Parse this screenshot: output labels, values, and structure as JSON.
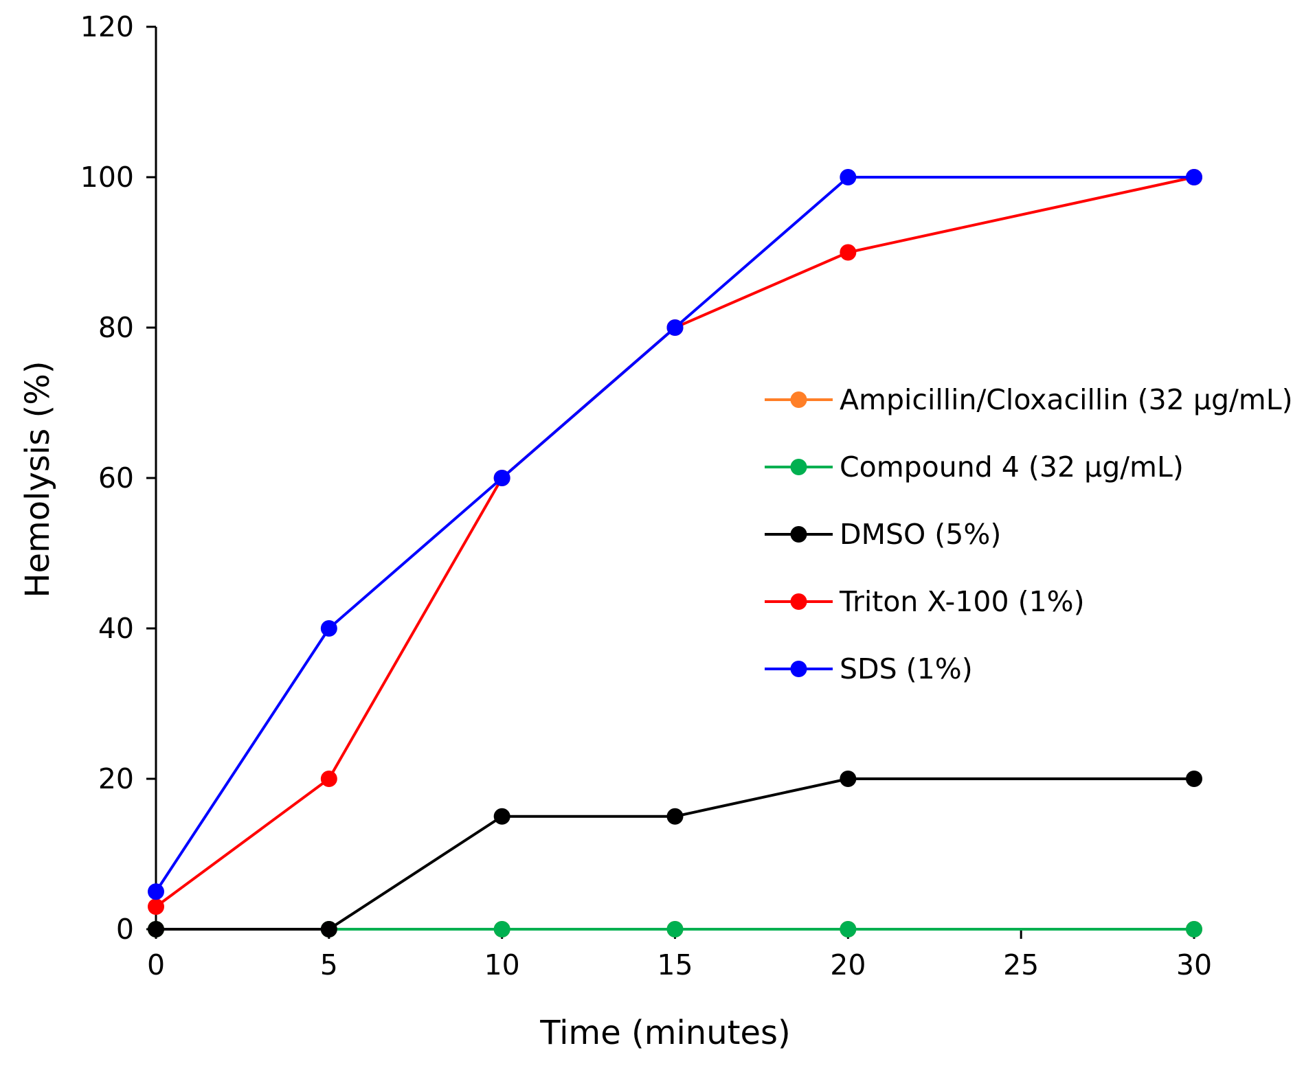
{
  "chart_data": {
    "type": "line",
    "title": "",
    "xlabel": "Time (minutes)",
    "ylabel": "Hemolysis (%)",
    "xlim": [
      0,
      30
    ],
    "ylim": [
      0,
      120
    ],
    "xticks": [
      0,
      5,
      10,
      15,
      20,
      25,
      30
    ],
    "yticks": [
      0,
      20,
      40,
      60,
      80,
      100,
      120
    ],
    "grid": false,
    "legend_position": "right-middle",
    "series": [
      {
        "name": "Ampicillin/Cloxacillin (32 μg/mL)",
        "color": "#FF7F27",
        "x": [
          0,
          5,
          10,
          15,
          20,
          30
        ],
        "values": [
          0,
          0,
          0,
          0,
          0,
          0
        ]
      },
      {
        "name": "Compound 4 (32 μg/mL)",
        "color": "#00B050",
        "x": [
          0,
          5,
          10,
          15,
          20,
          30
        ],
        "values": [
          0,
          0,
          0,
          0,
          0,
          0
        ]
      },
      {
        "name": "DMSO (5%)",
        "color": "#000000",
        "x": [
          0,
          5,
          10,
          15,
          20,
          30
        ],
        "values": [
          0,
          0,
          15,
          15,
          20,
          20
        ]
      },
      {
        "name": "Triton X-100 (1%)",
        "color": "#FF0000",
        "x": [
          0,
          5,
          10,
          15,
          20,
          30
        ],
        "values": [
          3,
          20,
          60,
          80,
          90,
          100
        ]
      },
      {
        "name": "SDS (1%)",
        "color": "#0000FF",
        "x": [
          0,
          5,
          10,
          15,
          20,
          30
        ],
        "values": [
          5,
          40,
          60,
          80,
          100,
          100
        ]
      }
    ]
  }
}
